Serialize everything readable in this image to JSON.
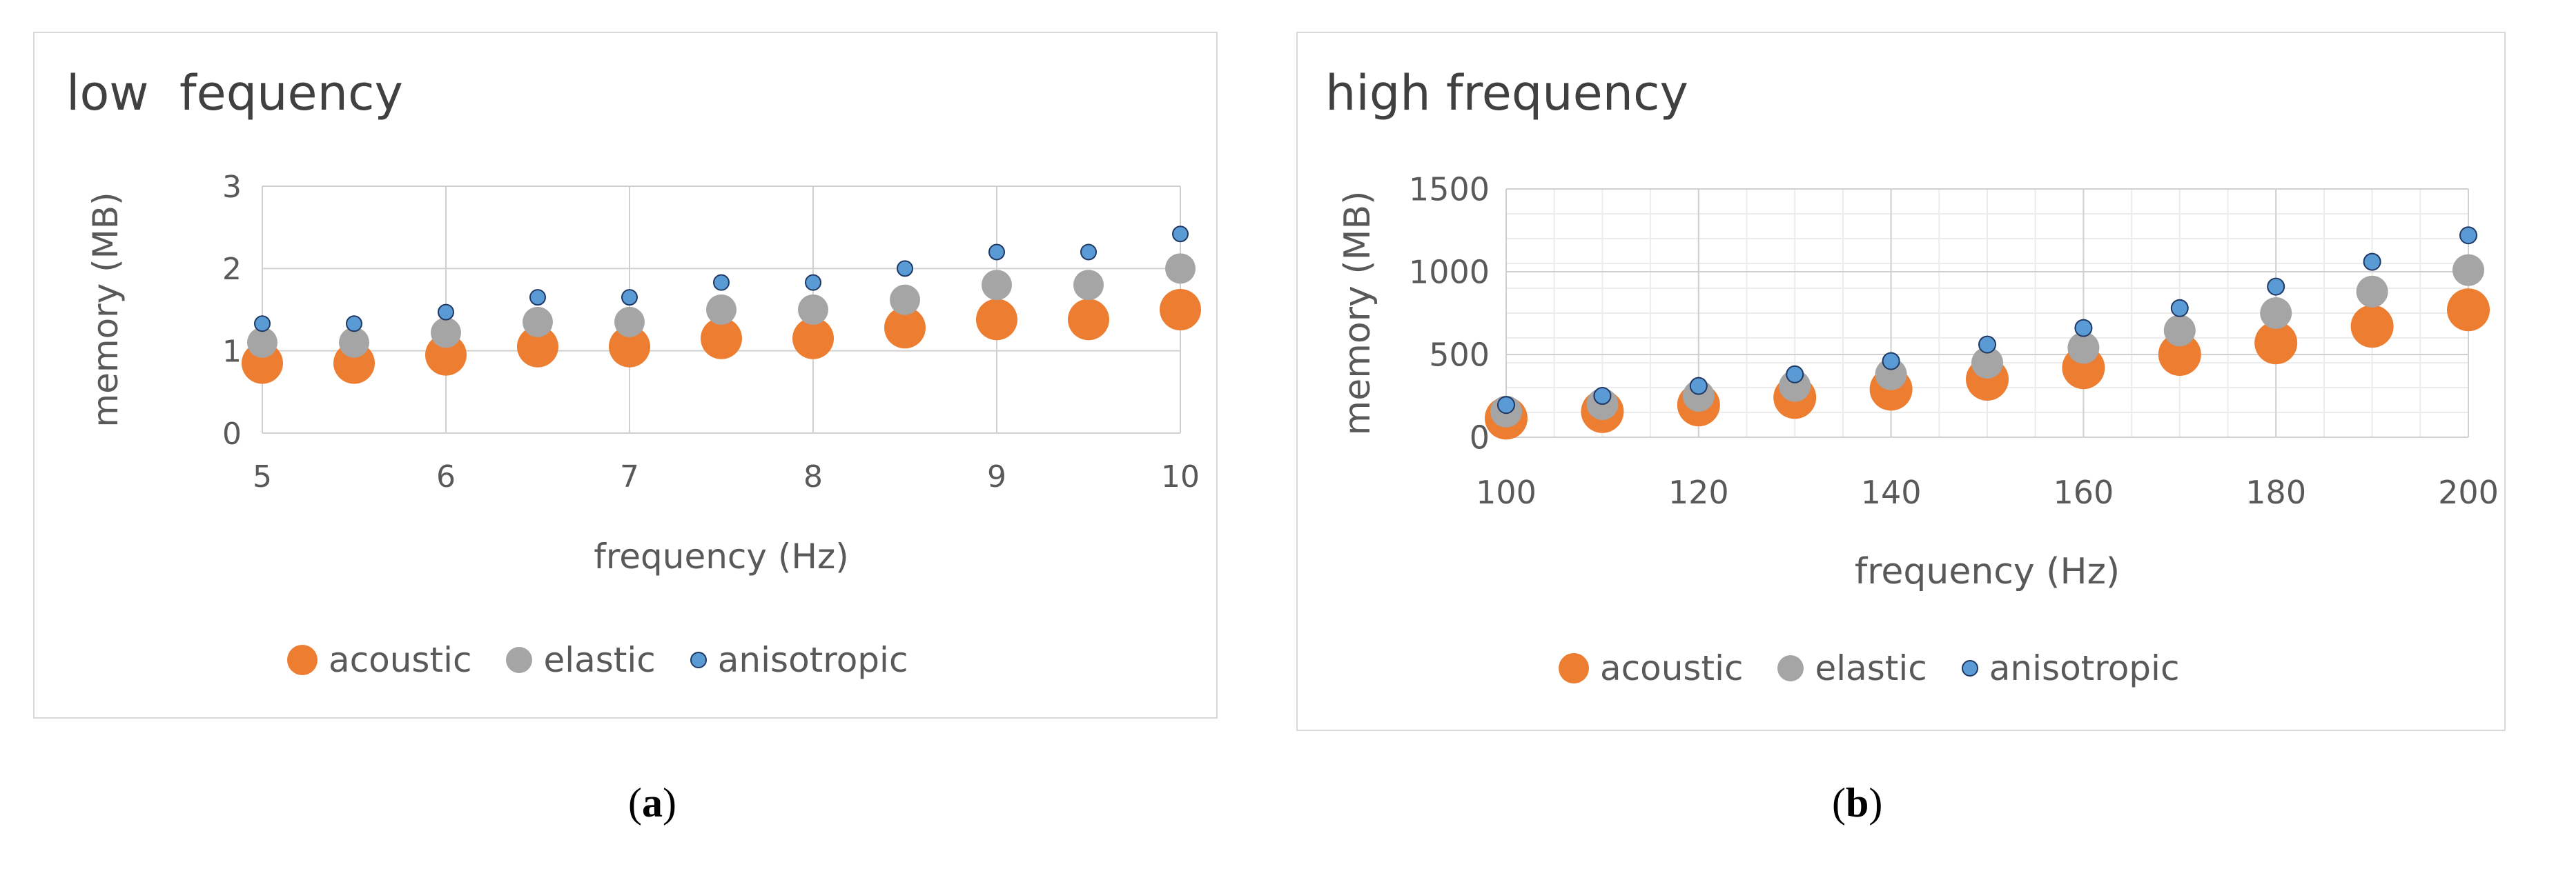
{
  "chart_data": [
    {
      "type": "scatter",
      "title": "low  fequency",
      "xlabel": "frequency (Hz)",
      "ylabel": "memory (MB)",
      "xlim": [
        5,
        10
      ],
      "ylim": [
        0,
        3
      ],
      "xticks": [
        "5",
        "6",
        "7",
        "8",
        "9",
        "10"
      ],
      "yticks": [
        "0",
        "1",
        "2",
        "3"
      ],
      "grid": "major",
      "legend": "bottom",
      "x": [
        5,
        5.5,
        6,
        6.5,
        7,
        7.5,
        8,
        8.5,
        9,
        9.5,
        10
      ],
      "series": [
        {
          "name": "acoustic",
          "color": "#ed7d31",
          "values": [
            0.85,
            0.85,
            0.95,
            1.05,
            1.05,
            1.15,
            1.15,
            1.28,
            1.38,
            1.38,
            1.5
          ]
        },
        {
          "name": "elastic",
          "color": "#a5a5a5",
          "values": [
            1.1,
            1.1,
            1.22,
            1.35,
            1.35,
            1.5,
            1.5,
            1.62,
            1.8,
            1.8,
            2.0
          ]
        },
        {
          "name": "anisotropic",
          "color": "#5b9bd5",
          "values": [
            1.33,
            1.33,
            1.47,
            1.65,
            1.65,
            1.83,
            1.83,
            2.0,
            2.2,
            2.2,
            2.42
          ]
        }
      ]
    },
    {
      "type": "scatter",
      "title": "high frequency",
      "xlabel": "frequency (Hz)",
      "ylabel": "memory (MB)",
      "xlim": [
        100,
        200
      ],
      "ylim": [
        0,
        1500
      ],
      "xticks": [
        "100",
        "120",
        "140",
        "160",
        "180",
        "200"
      ],
      "yticks": [
        "0",
        "500",
        "1000",
        "1500"
      ],
      "grid": "major+minor",
      "legend": "bottom",
      "x": [
        100,
        110,
        120,
        130,
        140,
        150,
        160,
        170,
        180,
        190,
        200
      ],
      "series": [
        {
          "name": "acoustic",
          "color": "#ed7d31",
          "values": [
            115,
            155,
            195,
            240,
            290,
            350,
            420,
            500,
            570,
            670,
            770
          ]
        },
        {
          "name": "elastic",
          "color": "#a5a5a5",
          "values": [
            155,
            200,
            250,
            310,
            380,
            450,
            540,
            645,
            750,
            880,
            1010
          ]
        },
        {
          "name": "anisotropic",
          "color": "#5b9bd5",
          "values": [
            195,
            250,
            310,
            380,
            460,
            560,
            660,
            780,
            910,
            1060,
            1220
          ]
        }
      ]
    }
  ],
  "captions": [
    "a",
    "b"
  ]
}
